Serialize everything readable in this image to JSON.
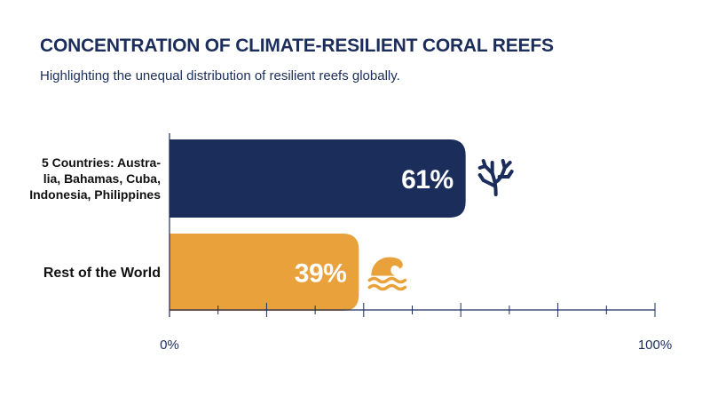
{
  "chart_data": {
    "type": "bar",
    "orientation": "horizontal",
    "title": "CONCENTRATION OF CLIMATE-RESILIENT CORAL REEFS",
    "subtitle": "Highlighting the unequal distribution of resilient reefs globally.",
    "categories": [
      "5 Countries: Australia, Bahamas, Cuba, Indonesia, Philippines",
      "Rest of the World"
    ],
    "category_label_lines": [
      [
        "5 Countries: Austra-",
        "lia, Bahamas, Cuba,",
        "Indonesia, Philippines"
      ],
      [
        "Rest of the World"
      ]
    ],
    "values": [
      61,
      39
    ],
    "value_labels": [
      "61%",
      "39%"
    ],
    "bar_colors": [
      "#1b2d5b",
      "#e9a23b"
    ],
    "icons": [
      "coral-icon",
      "wave-icon"
    ],
    "xlim": [
      0,
      100
    ],
    "tick_labels": [
      "0%",
      "100%"
    ],
    "minor_tick_step": 10,
    "grid": false,
    "legend": "none"
  }
}
